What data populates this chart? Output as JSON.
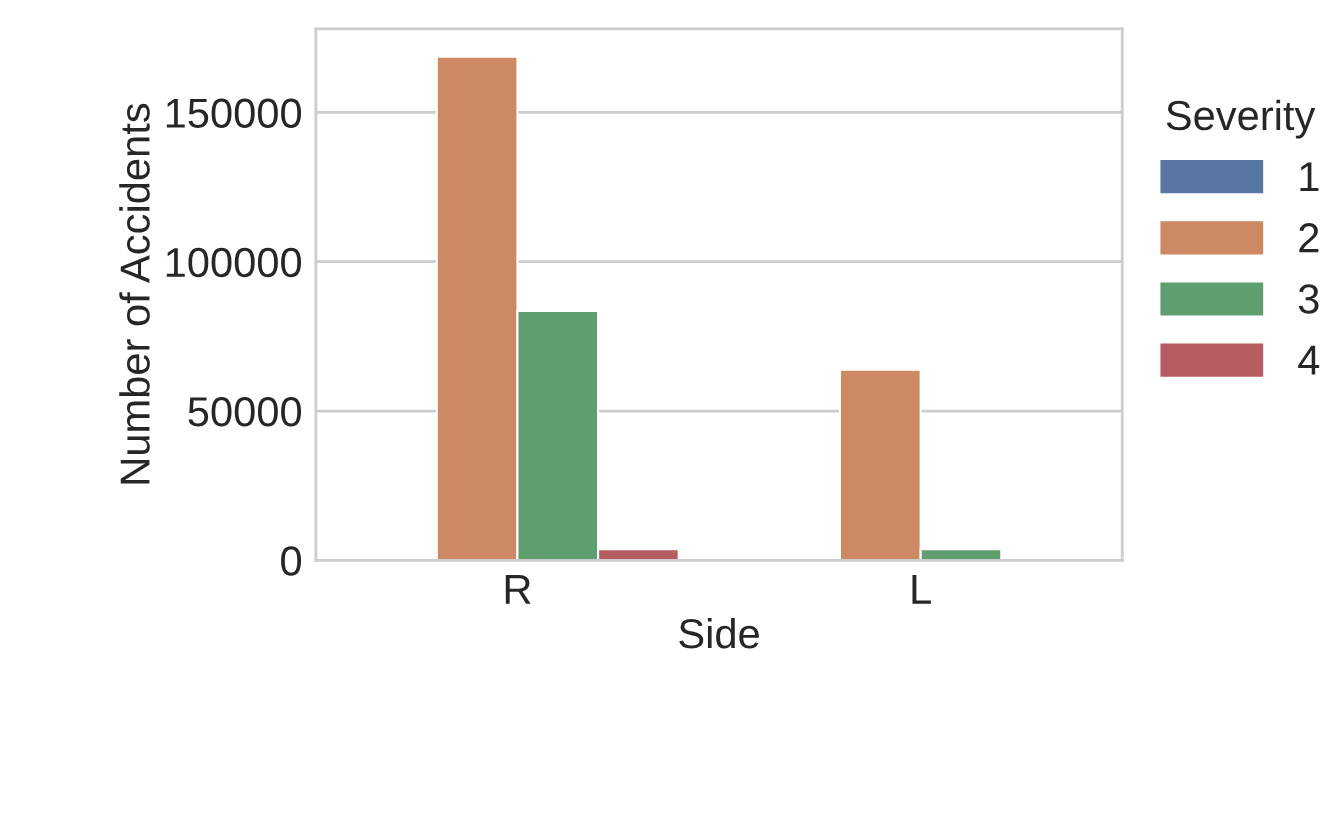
{
  "chart_data": {
    "type": "bar",
    "xlabel": "Side",
    "ylabel": "Number of Accidents",
    "legend_title": "Severity",
    "categories": [
      "R",
      "L"
    ],
    "series": [
      {
        "name": "1",
        "color": "#5975a4",
        "values": [
          null,
          null
        ]
      },
      {
        "name": "2",
        "color": "#cc8963",
        "values": [
          168700,
          63800
        ]
      },
      {
        "name": "3",
        "color": "#5f9e6e",
        "values": [
          83500,
          3700
        ]
      },
      {
        "name": "4",
        "color": "#b55d60",
        "values": [
          3700,
          null
        ]
      }
    ],
    "ylim": [
      0,
      178000
    ],
    "yticks": [
      0,
      50000,
      100000,
      150000
    ],
    "grid": "y",
    "legend": "right"
  }
}
